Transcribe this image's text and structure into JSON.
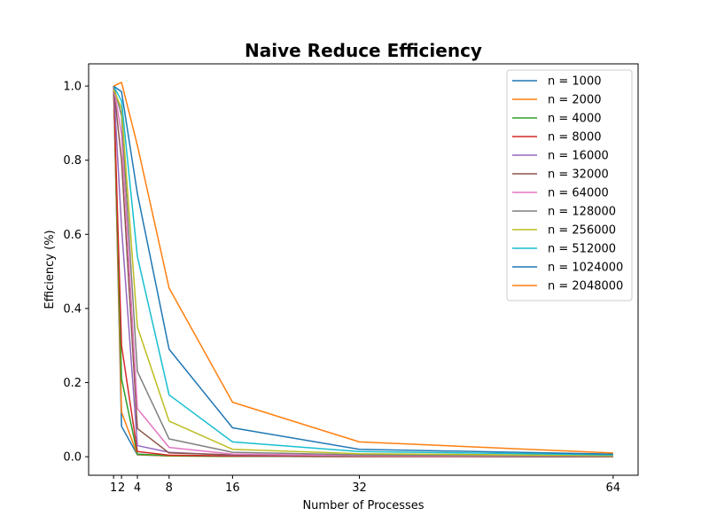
{
  "chart_data": {
    "type": "line",
    "title": "Naive Reduce Efficiency",
    "xlabel": "Number of Processes",
    "ylabel": "Efficiency (%)",
    "x": [
      1,
      2,
      4,
      8,
      16,
      32,
      64
    ],
    "xticks": [
      "1",
      "2",
      "4",
      "8",
      "16",
      "32",
      "64"
    ],
    "xlim": [
      -2.15,
      67.15
    ],
    "yticks": [
      "0.0",
      "0.2",
      "0.4",
      "0.6",
      "0.8",
      "1.0"
    ],
    "ylim": [
      -0.05,
      1.06
    ],
    "grid": false,
    "legend_position": "top-right",
    "series": [
      {
        "name": "n = 1000",
        "color": "#1f77b4",
        "values": [
          1.0,
          0.082,
          0.005,
          0.002,
          0.001,
          0.0005,
          0.0002
        ]
      },
      {
        "name": "n = 2000",
        "color": "#ff7f0e",
        "values": [
          1.0,
          0.12,
          0.006,
          0.002,
          0.001,
          0.0005,
          0.0002
        ]
      },
      {
        "name": "n = 4000",
        "color": "#2ca02c",
        "values": [
          1.0,
          0.21,
          0.007,
          0.003,
          0.001,
          0.0006,
          0.0003
        ]
      },
      {
        "name": "n = 8000",
        "color": "#d62728",
        "values": [
          1.0,
          0.3,
          0.014,
          0.004,
          0.002,
          0.001,
          0.0005
        ]
      },
      {
        "name": "n = 16000",
        "color": "#9467bd",
        "values": [
          1.0,
          0.62,
          0.03,
          0.012,
          0.004,
          0.002,
          0.001
        ]
      },
      {
        "name": "n = 32000",
        "color": "#8c564b",
        "values": [
          1.0,
          0.8,
          0.076,
          0.01,
          0.005,
          0.002,
          0.001
        ]
      },
      {
        "name": "n = 64000",
        "color": "#e377c2",
        "values": [
          1.0,
          0.87,
          0.13,
          0.025,
          0.007,
          0.003,
          0.0015
        ]
      },
      {
        "name": "n = 128000",
        "color": "#7f7f7f",
        "values": [
          1.0,
          0.92,
          0.23,
          0.048,
          0.012,
          0.005,
          0.002
        ]
      },
      {
        "name": "n = 256000",
        "color": "#bcbd22",
        "values": [
          0.99,
          0.94,
          0.35,
          0.096,
          0.02,
          0.008,
          0.003
        ]
      },
      {
        "name": "n = 512000",
        "color": "#17becf",
        "values": [
          1.0,
          0.96,
          0.54,
          0.167,
          0.04,
          0.014,
          0.005
        ]
      },
      {
        "name": "n = 1024000",
        "color": "#1f77b4",
        "values": [
          1.0,
          0.985,
          0.71,
          0.29,
          0.078,
          0.02,
          0.007
        ]
      },
      {
        "name": "n = 2048000",
        "color": "#ff7f0e",
        "values": [
          1.0,
          1.01,
          0.84,
          0.455,
          0.147,
          0.04,
          0.01
        ]
      }
    ]
  }
}
